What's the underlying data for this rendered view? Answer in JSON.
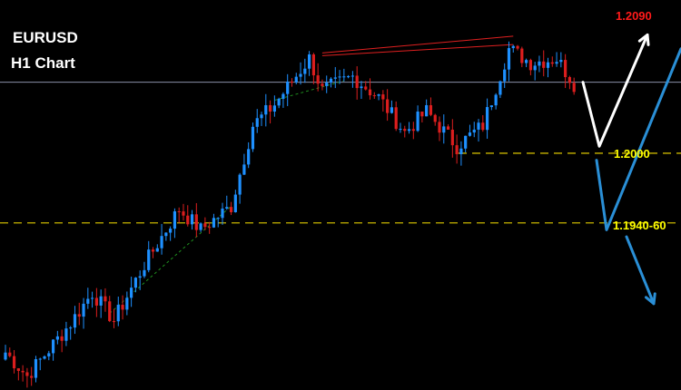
{
  "header": {
    "symbol": "EURUSD",
    "timeframe": "H1 Chart"
  },
  "colors": {
    "background": "#000000",
    "bull": "#1e90ff",
    "bear": "#dc1e1e",
    "level_line": "#c8b400",
    "current_price_line": "#8a90a8",
    "trendline_red": "#e02020",
    "trendline_green": "#1f8f1f",
    "path_white": "#ffffff",
    "path_blue": "#2a8fd6",
    "label_target": "#ff1a1a",
    "label_level": "#ffff00"
  },
  "levels": {
    "target_label": "1.2090",
    "support_1_label": "1.2000",
    "support_2_label": "1.1940-60"
  },
  "chart_data": {
    "type": "candlestick",
    "title": "EURUSD",
    "subtitle": "H1 Chart",
    "xlabel": "",
    "ylabel": "",
    "y_domain": [
      1.183,
      1.211
    ],
    "candle_count": 132,
    "swing_points": [
      {
        "i": 0,
        "p": 1.1857
      },
      {
        "i": 5,
        "p": 1.184
      },
      {
        "i": 15,
        "p": 1.1878
      },
      {
        "i": 20,
        "p": 1.19
      },
      {
        "i": 25,
        "p": 1.188
      },
      {
        "i": 32,
        "p": 1.192
      },
      {
        "i": 40,
        "p": 1.196
      },
      {
        "i": 45,
        "p": 1.1945
      },
      {
        "i": 52,
        "p": 1.1962
      },
      {
        "i": 57,
        "p": 1.202
      },
      {
        "i": 62,
        "p": 1.2035
      },
      {
        "i": 70,
        "p": 1.2068
      },
      {
        "i": 73,
        "p": 1.2045
      },
      {
        "i": 80,
        "p": 1.2055
      },
      {
        "i": 86,
        "p": 1.204
      },
      {
        "i": 92,
        "p": 1.2015
      },
      {
        "i": 97,
        "p": 1.203
      },
      {
        "i": 104,
        "p": 1.2005
      },
      {
        "i": 110,
        "p": 1.202
      },
      {
        "i": 116,
        "p": 1.2075
      },
      {
        "i": 121,
        "p": 1.2065
      },
      {
        "i": 127,
        "p": 1.2068
      },
      {
        "i": 131,
        "p": 1.205
      }
    ],
    "current_price": 1.2051,
    "horizontal_levels": [
      {
        "label": "1.2000",
        "value": 1.2,
        "style": "dashed"
      },
      {
        "label": "1.1940-60",
        "value": 1.195,
        "style": "dashed"
      }
    ],
    "trendlines": [
      {
        "color": "red",
        "from": {
          "i": 73,
          "p": 1.2072
        },
        "to": {
          "i": 117,
          "p": 1.2084
        }
      },
      {
        "color": "red",
        "from": {
          "i": 73,
          "p": 1.207
        },
        "to": {
          "i": 117,
          "p": 1.2078
        }
      },
      {
        "color": "green",
        "style": "dashed",
        "from": {
          "i": 24,
          "p": 1.1885
        },
        "to": {
          "i": 52,
          "p": 1.1962
        }
      },
      {
        "color": "green",
        "style": "dashed",
        "from": {
          "i": 62,
          "p": 1.2038
        },
        "to": {
          "i": 78,
          "p": 1.2052
        }
      }
    ],
    "projection_paths": [
      {
        "color": "white",
        "points": [
          {
            "x": 642,
            "p": 1.2051
          },
          {
            "x": 660,
            "p": 1.2005
          },
          {
            "x": 713,
            "p": 1.2085
          }
        ],
        "arrow": "end"
      },
      {
        "color": "blue",
        "points": [
          {
            "x": 657,
            "p": 1.1995
          },
          {
            "x": 668,
            "p": 1.1945
          },
          {
            "x": 750,
            "p": 1.2075
          }
        ],
        "arrow": "none"
      },
      {
        "color": "blue",
        "points": [
          {
            "x": 690,
            "p": 1.194
          },
          {
            "x": 720,
            "p": 1.1892
          }
        ],
        "arrow": "end"
      }
    ],
    "annotations": [
      "1.2090",
      "1.2000",
      "1.1940-60"
    ],
    "grid": false,
    "legend": "none"
  }
}
